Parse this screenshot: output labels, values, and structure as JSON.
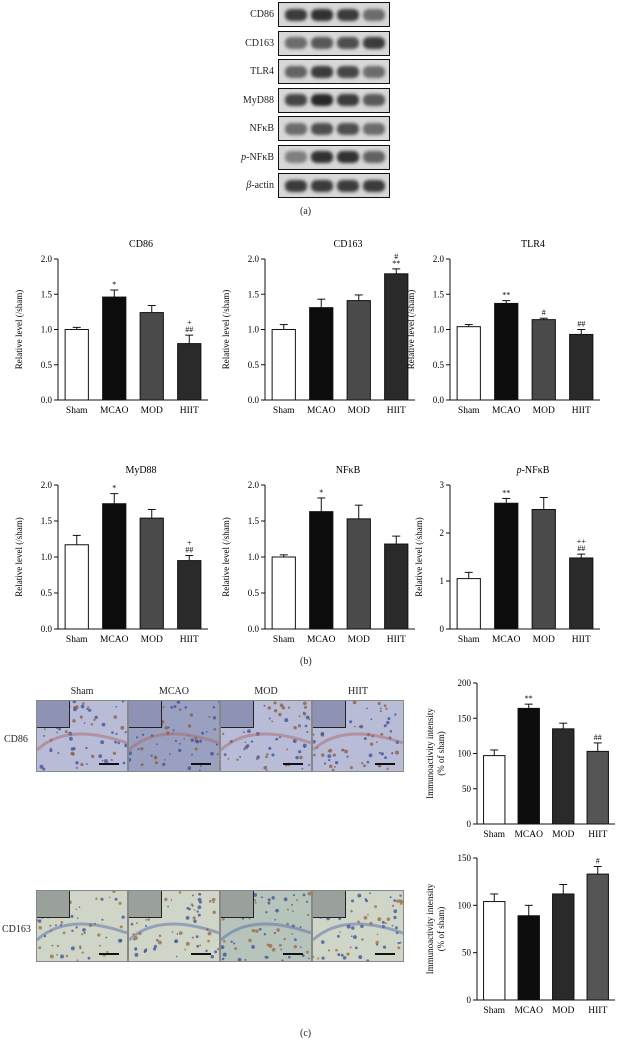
{
  "panel_labels": {
    "a": "(a)",
    "b": "(b)",
    "c": "(c)"
  },
  "blot": {
    "rows": [
      {
        "label_pre": "",
        "label_main": "CD86",
        "italic_pre": false
      },
      {
        "label_pre": "",
        "label_main": "CD163",
        "italic_pre": false
      },
      {
        "label_pre": "",
        "label_main": "TLR4",
        "italic_pre": false
      },
      {
        "label_pre": "",
        "label_main": "MyD88",
        "italic_pre": false
      },
      {
        "label_pre": "",
        "label_main": "NFκB",
        "italic_pre": false
      },
      {
        "label_pre": "p",
        "label_main": "-NFκB",
        "italic_pre": true
      },
      {
        "label_pre": "β",
        "label_main": "-actin",
        "italic_pre": true
      }
    ],
    "band_intensity": [
      [
        0.8,
        0.85,
        0.8,
        0.55
      ],
      [
        0.55,
        0.65,
        0.7,
        0.8
      ],
      [
        0.6,
        0.8,
        0.75,
        0.55
      ],
      [
        0.75,
        0.9,
        0.8,
        0.65
      ],
      [
        0.55,
        0.7,
        0.7,
        0.55
      ],
      [
        0.45,
        0.85,
        0.85,
        0.6
      ],
      [
        0.8,
        0.8,
        0.8,
        0.8
      ]
    ]
  },
  "micro": {
    "row_labels": [
      "CD86",
      "CD163"
    ],
    "col_labels": [
      "Sham",
      "MCAO",
      "MOD",
      "HIIT"
    ]
  },
  "chart_data": [
    {
      "type": "bar",
      "title": "CD86",
      "title_pre": "",
      "ylabel": "Relative level (/sham)",
      "ylim": [
        0,
        2.0
      ],
      "yticks": [
        "0.0",
        "0.5",
        "1.0",
        "1.5",
        "2.0"
      ],
      "categories": [
        "Sham",
        "MCAO",
        "MOD",
        "HIIT"
      ],
      "values": [
        1.0,
        1.46,
        1.24,
        0.8
      ],
      "errors": [
        0.03,
        0.1,
        0.1,
        0.12
      ],
      "annotations": [
        "",
        "*",
        "",
        "##\n+"
      ],
      "colors": [
        "#ffffff",
        "#0c0c0c",
        "#4a4a4a",
        "#2a2a2a"
      ]
    },
    {
      "type": "bar",
      "title": "CD163",
      "title_pre": "",
      "ylabel": "Relative level (/sham)",
      "ylim": [
        0,
        2.0
      ],
      "yticks": [
        "0.0",
        "0.5",
        "1.0",
        "1.5",
        "2.0"
      ],
      "categories": [
        "Sham",
        "MCAO",
        "MOD",
        "HIIT"
      ],
      "values": [
        1.0,
        1.31,
        1.41,
        1.79
      ],
      "errors": [
        0.07,
        0.12,
        0.08,
        0.07
      ],
      "annotations": [
        "",
        "",
        "",
        "**\n#"
      ],
      "colors": [
        "#ffffff",
        "#0c0c0c",
        "#4a4a4a",
        "#2a2a2a"
      ]
    },
    {
      "type": "bar",
      "title": "TLR4",
      "title_pre": "",
      "ylabel": "Relative level (/sham)",
      "ylim": [
        0,
        2.0
      ],
      "yticks": [
        "0.0",
        "0.5",
        "1.0",
        "1.5",
        "2.0"
      ],
      "categories": [
        "Sham",
        "MCAO",
        "MOD",
        "HIIT"
      ],
      "values": [
        1.04,
        1.37,
        1.14,
        0.93
      ],
      "errors": [
        0.03,
        0.04,
        0.02,
        0.07
      ],
      "annotations": [
        "",
        "**",
        "#",
        "##"
      ],
      "colors": [
        "#ffffff",
        "#0c0c0c",
        "#4a4a4a",
        "#2a2a2a"
      ]
    },
    {
      "type": "bar",
      "title": "MyD88",
      "title_pre": "",
      "ylabel": "Relative level (/sham)",
      "ylim": [
        0,
        2.0
      ],
      "yticks": [
        "0.0",
        "0.5",
        "1.0",
        "1.5",
        "2.0"
      ],
      "categories": [
        "Sham",
        "MCAO",
        "MOD",
        "HIIT"
      ],
      "values": [
        1.17,
        1.74,
        1.54,
        0.95
      ],
      "errors": [
        0.13,
        0.14,
        0.12,
        0.07
      ],
      "annotations": [
        "",
        "*",
        "",
        "##\n+"
      ],
      "colors": [
        "#ffffff",
        "#0c0c0c",
        "#4a4a4a",
        "#2a2a2a"
      ]
    },
    {
      "type": "bar",
      "title": "NFκB",
      "title_pre": "",
      "ylabel": "Relative level (/sham)",
      "ylim": [
        0,
        2.0
      ],
      "yticks": [
        "0.0",
        "0.5",
        "1.0",
        "1.5",
        "2.0"
      ],
      "categories": [
        "Sham",
        "MCAO",
        "MOD",
        "HIIT"
      ],
      "values": [
        1.0,
        1.63,
        1.53,
        1.18
      ],
      "errors": [
        0.03,
        0.19,
        0.19,
        0.11
      ],
      "annotations": [
        "",
        "*",
        "",
        ""
      ],
      "colors": [
        "#ffffff",
        "#0c0c0c",
        "#4a4a4a",
        "#2a2a2a"
      ]
    },
    {
      "type": "bar",
      "title": "-NFκB",
      "title_pre": "p",
      "ylabel": "Relative level (/sham)",
      "ylim": [
        0,
        3
      ],
      "yticks": [
        "0",
        "1",
        "2",
        "3"
      ],
      "categories": [
        "Sham",
        "MCAO",
        "MOD",
        "HIIT"
      ],
      "values": [
        1.05,
        2.62,
        2.49,
        1.48
      ],
      "errors": [
        0.13,
        0.1,
        0.25,
        0.08
      ],
      "annotations": [
        "",
        "**",
        "",
        "##\n++"
      ],
      "colors": [
        "#ffffff",
        "#0c0c0c",
        "#4a4a4a",
        "#2a2a2a"
      ]
    },
    {
      "type": "bar",
      "title": "",
      "title_pre": "",
      "ylabel": "Immunoactivity intensity\n(% of sham)",
      "ylim": [
        0,
        200
      ],
      "yticks": [
        "0",
        "50",
        "100",
        "150",
        "200"
      ],
      "categories": [
        "Sham",
        "MCAO",
        "MOD",
        "HIIT"
      ],
      "values": [
        97,
        164,
        135,
        103
      ],
      "errors": [
        8,
        6,
        8,
        12
      ],
      "annotations": [
        "",
        "**",
        "",
        "##"
      ],
      "colors": [
        "#ffffff",
        "#0c0c0c",
        "#2a2a2a",
        "#555555"
      ]
    },
    {
      "type": "bar",
      "title": "",
      "title_pre": "",
      "ylabel": "Immunoactivity intensity\n(% of sham)",
      "ylim": [
        0,
        150
      ],
      "yticks": [
        "0",
        "50",
        "100",
        "150"
      ],
      "categories": [
        "Sham",
        "MCAO",
        "MOD",
        "HIIT"
      ],
      "values": [
        104,
        89,
        112,
        133
      ],
      "errors": [
        8,
        11,
        10,
        8
      ],
      "annotations": [
        "",
        "",
        "",
        "#"
      ],
      "colors": [
        "#ffffff",
        "#0c0c0c",
        "#2a2a2a",
        "#555555"
      ]
    }
  ]
}
